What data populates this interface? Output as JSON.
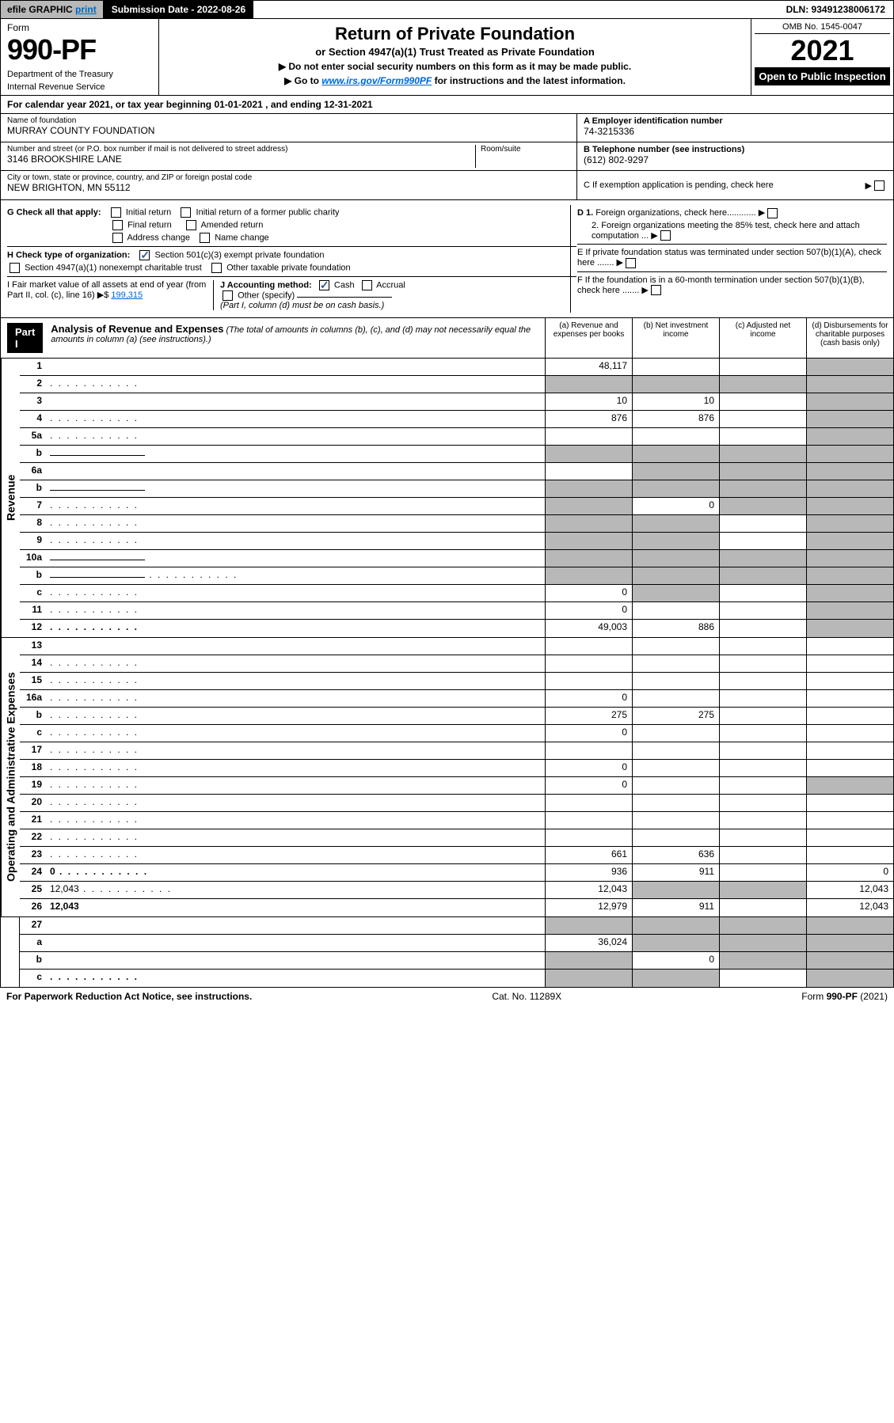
{
  "top": {
    "efile_prefix": "efile",
    "efile_graphic": "GRAPHIC",
    "efile_print": "print",
    "submission_label": "Submission Date - 2022-08-26",
    "dln": "DLN: 93491238006172"
  },
  "header": {
    "form_label": "Form",
    "form_number": "990-PF",
    "dept1": "Department of the Treasury",
    "dept2": "Internal Revenue Service",
    "title": "Return of Private Foundation",
    "subtitle": "or Section 4947(a)(1) Trust Treated as Private Foundation",
    "note1": "▶ Do not enter social security numbers on this form as it may be made public.",
    "note2_pre": "▶ Go to ",
    "note2_link": "www.irs.gov/Form990PF",
    "note2_post": " for instructions and the latest information.",
    "omb": "OMB No. 1545-0047",
    "year": "2021",
    "open": "Open to Public Inspection"
  },
  "cal_year": "For calendar year 2021, or tax year beginning 01-01-2021               , and ending 12-31-2021",
  "info": {
    "name_label": "Name of foundation",
    "name": "MURRAY COUNTY FOUNDATION",
    "addr_label": "Number and street (or P.O. box number if mail is not delivered to street address)",
    "addr": "3146 BROOKSHIRE LANE",
    "room_label": "Room/suite",
    "city_label": "City or town, state or province, country, and ZIP or foreign postal code",
    "city": "NEW BRIGHTON, MN  55112",
    "a_label": "A Employer identification number",
    "a_val": "74-3215336",
    "b_label": "B Telephone number (see instructions)",
    "b_val": "(612) 802-9297",
    "c_label": "C If exemption application is pending, check here",
    "d1_label": "D 1. Foreign organizations, check here............",
    "d2_label": "2. Foreign organizations meeting the 85% test, check here and attach computation ...",
    "e_label": "E  If private foundation status was terminated under section 507(b)(1)(A), check here .......",
    "f_label": "F  If the foundation is in a 60-month termination under section 507(b)(1)(B), check here .......",
    "g_label": "G Check all that apply:",
    "g_opts": [
      "Initial return",
      "Initial return of a former public charity",
      "Final return",
      "Amended return",
      "Address change",
      "Name change"
    ],
    "h_label": "H Check type of organization:",
    "h_opt1": "Section 501(c)(3) exempt private foundation",
    "h_opt2": "Section 4947(a)(1) nonexempt charitable trust",
    "h_opt3": "Other taxable private foundation",
    "i_label": "I Fair market value of all assets at end of year (from Part II, col. (c), line 16)",
    "i_val": "199,315",
    "j_label": "J Accounting method:",
    "j_cash": "Cash",
    "j_accrual": "Accrual",
    "j_other": "Other (specify)",
    "j_note": "(Part I, column (d) must be on cash basis.)"
  },
  "part1": {
    "label": "Part I",
    "title": "Analysis of Revenue and Expenses",
    "sub": " (The total of amounts in columns (b), (c), and (d) may not necessarily equal the amounts in column (a) (see instructions).)",
    "cols": {
      "a": "(a)   Revenue and expenses per books",
      "b": "(b)   Net investment income",
      "c": "(c)   Adjusted net income",
      "d": "(d)   Disbursements for charitable purposes (cash basis only)"
    }
  },
  "side_labels": {
    "revenue": "Revenue",
    "expenses": "Operating and Administrative Expenses"
  },
  "rows": [
    {
      "n": "1",
      "d": "",
      "a": "48,117",
      "b": "",
      "c": "",
      "sd": true
    },
    {
      "n": "2",
      "d": "",
      "dots": true,
      "a": "",
      "b": "",
      "c": "",
      "sa": true,
      "sb": true,
      "sc": true,
      "sd": true
    },
    {
      "n": "3",
      "d": "",
      "a": "10",
      "b": "10",
      "c": "",
      "sd": true
    },
    {
      "n": "4",
      "d": "",
      "dots": true,
      "a": "876",
      "b": "876",
      "c": "",
      "sd": true
    },
    {
      "n": "5a",
      "d": "",
      "dots": true,
      "a": "",
      "b": "",
      "c": "",
      "sd": true
    },
    {
      "n": "b",
      "d": "",
      "a": "",
      "b": "",
      "c": "",
      "sa": true,
      "sb": true,
      "sc": true,
      "sd": true,
      "half": true
    },
    {
      "n": "6a",
      "d": "",
      "a": "",
      "b": "",
      "c": "",
      "sb": true,
      "sc": true,
      "sd": true
    },
    {
      "n": "b",
      "d": "",
      "a": "",
      "b": "",
      "c": "",
      "sa": true,
      "sb": true,
      "sc": true,
      "sd": true,
      "half": true
    },
    {
      "n": "7",
      "d": "",
      "dots": true,
      "a": "",
      "b": "0",
      "c": "",
      "sa": true,
      "sc": true,
      "sd": true
    },
    {
      "n": "8",
      "d": "",
      "dots": true,
      "a": "",
      "b": "",
      "c": "",
      "sa": true,
      "sb": true,
      "sd": true
    },
    {
      "n": "9",
      "d": "",
      "dots": true,
      "a": "",
      "b": "",
      "c": "",
      "sa": true,
      "sb": true,
      "sd": true
    },
    {
      "n": "10a",
      "d": "",
      "a": "",
      "b": "",
      "c": "",
      "sa": true,
      "sb": true,
      "sc": true,
      "sd": true,
      "half": true
    },
    {
      "n": "b",
      "d": "",
      "dots": true,
      "a": "",
      "b": "",
      "c": "",
      "sa": true,
      "sb": true,
      "sc": true,
      "sd": true,
      "half": true
    },
    {
      "n": "c",
      "d": "",
      "dots": true,
      "a": "0",
      "b": "",
      "c": "",
      "sb": true,
      "sd": true
    },
    {
      "n": "11",
      "d": "",
      "dots": true,
      "a": "0",
      "b": "",
      "c": "",
      "sd": true
    },
    {
      "n": "12",
      "d": "",
      "dots": true,
      "bold": true,
      "a": "49,003",
      "b": "886",
      "c": "",
      "sd": true
    }
  ],
  "exp_rows": [
    {
      "n": "13",
      "d": "",
      "a": "",
      "b": "",
      "c": ""
    },
    {
      "n": "14",
      "d": "",
      "dots": true,
      "a": "",
      "b": "",
      "c": ""
    },
    {
      "n": "15",
      "d": "",
      "dots": true,
      "a": "",
      "b": "",
      "c": ""
    },
    {
      "n": "16a",
      "d": "",
      "dots": true,
      "a": "0",
      "b": "",
      "c": ""
    },
    {
      "n": "b",
      "d": "",
      "dots": true,
      "a": "275",
      "b": "275",
      "c": ""
    },
    {
      "n": "c",
      "d": "",
      "dots": true,
      "a": "0",
      "b": "",
      "c": ""
    },
    {
      "n": "17",
      "d": "",
      "dots": true,
      "a": "",
      "b": "",
      "c": ""
    },
    {
      "n": "18",
      "d": "",
      "dots": true,
      "a": "0",
      "b": "",
      "c": ""
    },
    {
      "n": "19",
      "d": "",
      "dots": true,
      "a": "0",
      "b": "",
      "c": "",
      "sd": true
    },
    {
      "n": "20",
      "d": "",
      "dots": true,
      "a": "",
      "b": "",
      "c": ""
    },
    {
      "n": "21",
      "d": "",
      "dots": true,
      "a": "",
      "b": "",
      "c": ""
    },
    {
      "n": "22",
      "d": "",
      "dots": true,
      "a": "",
      "b": "",
      "c": ""
    },
    {
      "n": "23",
      "d": "",
      "dots": true,
      "a": "661",
      "b": "636",
      "c": ""
    },
    {
      "n": "24",
      "d": "0",
      "dots": true,
      "bold": true,
      "a": "936",
      "b": "911",
      "c": ""
    },
    {
      "n": "25",
      "d": "12,043",
      "dots": true,
      "a": "12,043",
      "b": "",
      "c": "",
      "sb": true,
      "sc": true
    },
    {
      "n": "26",
      "d": "12,043",
      "bold": true,
      "a": "12,979",
      "b": "911",
      "c": ""
    }
  ],
  "final_rows": [
    {
      "n": "27",
      "d": "",
      "a": "",
      "b": "",
      "c": "",
      "sa": true,
      "sb": true,
      "sc": true,
      "sd": true
    },
    {
      "n": "a",
      "d": "",
      "bold": true,
      "a": "36,024",
      "b": "",
      "c": "",
      "sb": true,
      "sc": true,
      "sd": true
    },
    {
      "n": "b",
      "d": "",
      "bold": true,
      "a": "",
      "b": "0",
      "c": "",
      "sa": true,
      "sc": true,
      "sd": true
    },
    {
      "n": "c",
      "d": "",
      "bold": true,
      "dots": true,
      "a": "",
      "b": "",
      "c": "",
      "sa": true,
      "sb": true,
      "sd": true
    }
  ],
  "footer": {
    "left": "For Paperwork Reduction Act Notice, see instructions.",
    "mid": "Cat. No. 11289X",
    "right": "Form 990-PF (2021)"
  },
  "colors": {
    "shade": "#b8b8b8",
    "link": "#0066cc",
    "check": "#2e5c9a"
  }
}
